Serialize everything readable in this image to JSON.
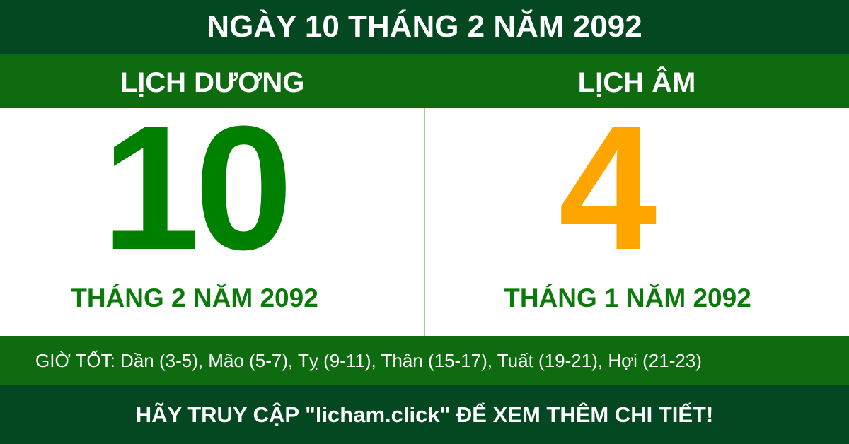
{
  "title": "NGÀY 10 THÁNG 2 NĂM 2092",
  "solar": {
    "heading": "LỊCH DƯƠNG",
    "day": "10",
    "month_year": "THÁNG 2 NĂM 2092",
    "color": "#008000"
  },
  "lunar": {
    "heading": "LỊCH ÂM",
    "day": "4",
    "month_year": "THÁNG 1 NĂM 2092",
    "color": "#ffa500"
  },
  "good_hours": "GIỜ TỐT: Dần (3-5), Mão (5-7), Tỵ (9-11), Thân (15-17), Tuất (19-21), Hợi (21-23)",
  "footer": "HÃY TRUY CẬP \"licham.click\" ĐỂ XEM THÊM CHI TIẾT!"
}
